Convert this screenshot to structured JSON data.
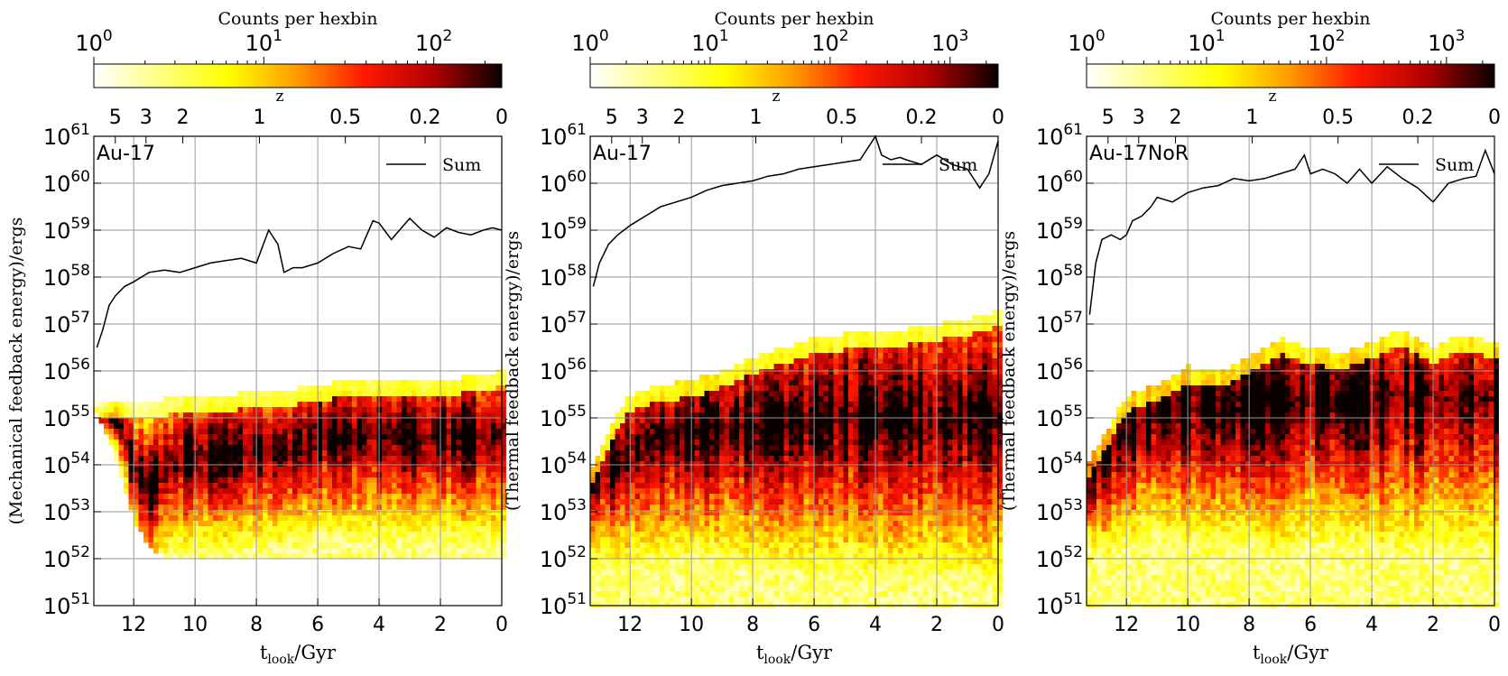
{
  "chart_data": [
    {
      "type": "heatmap",
      "panel_label": "Au-17",
      "xlabel": "t_look/Gyr",
      "ylabel": "(Mechanical feedback energy)/ergs",
      "colorbar_label": "Counts per hexbin",
      "colorbar_log_range": [
        0,
        2.4
      ],
      "colorbar_ticks": [
        0,
        1,
        2
      ],
      "top_axis_label": "z",
      "top_ticks": [
        "5",
        "3",
        "2",
        "1",
        "0.5",
        "0.2",
        "0"
      ],
      "top_tick_tlook": [
        12.6,
        11.6,
        10.4,
        7.9,
        5.1,
        2.5,
        0
      ],
      "x_ticks": [
        12,
        10,
        8,
        6,
        4,
        2,
        0
      ],
      "xlim": [
        13.3,
        0
      ],
      "ylim_log10": [
        51,
        61
      ],
      "y_ticks_log10": [
        51,
        52,
        53,
        54,
        55,
        56,
        57,
        58,
        59,
        60,
        61
      ],
      "grid": true,
      "legend_position": "top-right",
      "series": [
        {
          "name": "Sum",
          "t_look": [
            13.2,
            13.0,
            12.8,
            12.6,
            12.3,
            12.0,
            11.5,
            11.0,
            10.5,
            10.0,
            9.5,
            9.0,
            8.5,
            8.0,
            7.6,
            7.3,
            7.1,
            6.8,
            6.5,
            6.0,
            5.5,
            5.0,
            4.6,
            4.2,
            4.0,
            3.6,
            3.2,
            3.0,
            2.6,
            2.2,
            1.8,
            1.4,
            1.0,
            0.6,
            0.3,
            0.0
          ],
          "log10_energy": [
            56.5,
            56.9,
            57.4,
            57.6,
            57.8,
            57.9,
            58.1,
            58.15,
            58.1,
            58.2,
            58.3,
            58.35,
            58.4,
            58.3,
            59.0,
            58.7,
            58.1,
            58.2,
            58.2,
            58.3,
            58.5,
            58.65,
            58.6,
            59.2,
            59.15,
            58.8,
            59.1,
            59.25,
            59.0,
            58.85,
            59.05,
            58.95,
            58.9,
            59.0,
            59.05,
            59.0
          ]
        }
      ],
      "density_envelope": {
        "t_look": [
          13.2,
          12.5,
          12.0,
          11.5,
          11.0,
          10.0,
          9.0,
          8.0,
          7.0,
          6.0,
          5.0,
          4.0,
          3.0,
          2.0,
          1.0,
          0.0
        ],
        "log10_lower": [
          55.1,
          54.0,
          52.8,
          52.3,
          52.0,
          52.0,
          52.0,
          52.0,
          52.0,
          52.0,
          52.0,
          52.0,
          52.0,
          52.0,
          52.0,
          52.0
        ],
        "log10_upper": [
          55.3,
          55.3,
          55.4,
          55.4,
          55.4,
          55.5,
          55.5,
          55.55,
          55.6,
          55.7,
          55.8,
          55.8,
          55.8,
          55.8,
          55.9,
          56.0
        ],
        "log10_peak": [
          55.0,
          55.0,
          54.0,
          53.5,
          54.0,
          54.2,
          54.2,
          54.3,
          54.3,
          54.6,
          54.6,
          54.6,
          54.6,
          54.6,
          54.6,
          54.6
        ]
      }
    },
    {
      "type": "heatmap",
      "panel_label": "Au-17",
      "xlabel": "t_look/Gyr",
      "ylabel": "(Thermal feedback energy)/ergs",
      "colorbar_label": "Counts per hexbin",
      "colorbar_log_range": [
        0,
        3.4
      ],
      "colorbar_ticks": [
        0,
        1,
        2,
        3
      ],
      "top_axis_label": "z",
      "top_ticks": [
        "5",
        "3",
        "2",
        "1",
        "0.5",
        "0.2",
        "0"
      ],
      "top_tick_tlook": [
        12.6,
        11.6,
        10.4,
        7.9,
        5.1,
        2.5,
        0
      ],
      "x_ticks": [
        12,
        10,
        8,
        6,
        4,
        2,
        0
      ],
      "xlim": [
        13.3,
        0
      ],
      "ylim_log10": [
        51,
        61
      ],
      "y_ticks_log10": [
        51,
        52,
        53,
        54,
        55,
        56,
        57,
        58,
        59,
        60,
        61
      ],
      "grid": true,
      "legend_position": "top-right",
      "series": [
        {
          "name": "Sum",
          "t_look": [
            13.2,
            13.0,
            12.7,
            12.4,
            12.0,
            11.5,
            11.0,
            10.5,
            10.0,
            9.5,
            9.0,
            8.5,
            8.0,
            7.5,
            7.0,
            6.5,
            6.0,
            5.5,
            5.0,
            4.5,
            4.0,
            3.8,
            3.5,
            3.2,
            3.0,
            2.5,
            2.0,
            1.5,
            1.0,
            0.6,
            0.3,
            0.0
          ],
          "log10_energy": [
            57.8,
            58.3,
            58.7,
            58.9,
            59.1,
            59.3,
            59.5,
            59.6,
            59.7,
            59.85,
            59.95,
            60.0,
            60.05,
            60.15,
            60.2,
            60.3,
            60.35,
            60.4,
            60.45,
            60.5,
            61.0,
            60.6,
            60.5,
            60.55,
            60.5,
            60.4,
            60.6,
            60.4,
            60.3,
            59.9,
            60.2,
            60.9
          ]
        }
      ],
      "density_envelope": {
        "t_look": [
          13.2,
          12.5,
          12.0,
          11.5,
          11.0,
          10.0,
          9.0,
          8.0,
          7.0,
          6.0,
          5.0,
          4.0,
          3.0,
          2.0,
          1.0,
          0.0
        ],
        "log10_lower": [
          51.0,
          51.0,
          51.0,
          51.0,
          51.0,
          51.0,
          51.0,
          51.0,
          51.0,
          51.0,
          51.0,
          51.0,
          51.0,
          51.0,
          51.0,
          51.0
        ],
        "log10_upper": [
          54.0,
          55.0,
          55.5,
          55.6,
          55.7,
          55.8,
          56.0,
          56.3,
          56.5,
          56.7,
          56.8,
          56.9,
          56.9,
          57.0,
          57.1,
          57.3
        ],
        "log10_peak": [
          53.8,
          54.0,
          54.3,
          54.5,
          54.6,
          54.7,
          54.8,
          54.8,
          54.9,
          55.0,
          55.0,
          55.0,
          55.0,
          55.0,
          55.0,
          55.0
        ]
      }
    },
    {
      "type": "heatmap",
      "panel_label": "Au-17NoR",
      "xlabel": "t_look/Gyr",
      "ylabel": "(Thermal feedback energy)/ergs",
      "colorbar_label": "Counts per hexbin",
      "colorbar_log_range": [
        0,
        3.4
      ],
      "colorbar_ticks": [
        0,
        1,
        2,
        3
      ],
      "top_axis_label": "z",
      "top_ticks": [
        "5",
        "3",
        "2",
        "1",
        "0.5",
        "0.2",
        "0"
      ],
      "top_tick_tlook": [
        12.6,
        11.6,
        10.4,
        7.9,
        5.1,
        2.5,
        0
      ],
      "x_ticks": [
        12,
        10,
        8,
        6,
        4,
        2,
        0
      ],
      "xlim": [
        13.3,
        0
      ],
      "ylim_log10": [
        51,
        61
      ],
      "y_ticks_log10": [
        51,
        52,
        53,
        54,
        55,
        56,
        57,
        58,
        59,
        60,
        61
      ],
      "grid": true,
      "legend_position": "top-right",
      "series": [
        {
          "name": "Sum",
          "t_look": [
            13.2,
            13.0,
            12.8,
            12.5,
            12.2,
            12.0,
            11.8,
            11.5,
            11.2,
            11.0,
            10.5,
            10.0,
            9.5,
            9.0,
            8.5,
            8.0,
            7.5,
            7.0,
            6.5,
            6.2,
            6.0,
            5.6,
            5.2,
            4.8,
            4.4,
            4.0,
            3.5,
            3.0,
            2.5,
            2.0,
            1.5,
            1.0,
            0.6,
            0.3,
            0.0
          ],
          "log10_energy": [
            57.2,
            58.3,
            58.8,
            58.9,
            58.8,
            58.9,
            59.2,
            59.3,
            59.5,
            59.7,
            59.6,
            59.8,
            59.9,
            59.95,
            60.1,
            60.05,
            60.1,
            60.2,
            60.3,
            60.6,
            60.2,
            60.3,
            60.2,
            60.0,
            60.3,
            60.0,
            60.35,
            60.1,
            59.9,
            59.6,
            60.0,
            60.1,
            60.15,
            60.7,
            60.2
          ]
        }
      ],
      "density_envelope": {
        "t_look": [
          13.2,
          12.5,
          12.0,
          11.5,
          11.0,
          10.0,
          9.0,
          8.0,
          7.0,
          6.0,
          5.0,
          4.0,
          3.0,
          2.0,
          1.0,
          0.0
        ],
        "log10_lower": [
          51.0,
          51.0,
          51.0,
          51.0,
          51.0,
          51.0,
          51.0,
          51.0,
          51.0,
          51.0,
          51.0,
          51.0,
          51.0,
          51.0,
          51.0,
          51.0
        ],
        "log10_upper": [
          54.1,
          54.9,
          55.5,
          55.6,
          55.7,
          56.1,
          56.0,
          56.3,
          56.7,
          56.5,
          56.4,
          56.6,
          56.9,
          56.5,
          56.8,
          56.6
        ],
        "log10_peak": [
          54.0,
          54.3,
          54.8,
          55.0,
          55.2,
          55.2,
          55.2,
          55.3,
          55.3,
          55.4,
          55.4,
          55.4,
          55.4,
          55.4,
          55.4,
          55.4
        ]
      }
    }
  ]
}
